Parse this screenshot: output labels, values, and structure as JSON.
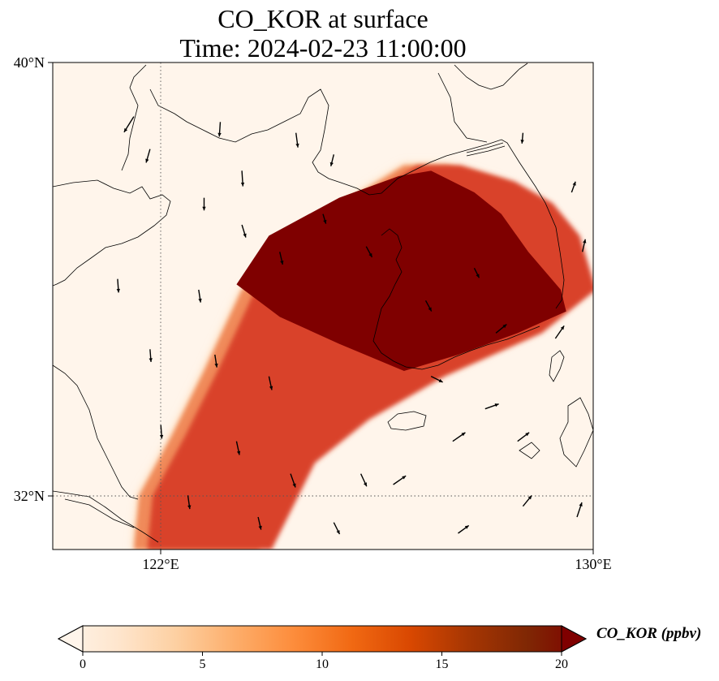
{
  "title": {
    "line1": "CO_KOR at surface",
    "line2": "Time: 2024-02-23 11:00:00"
  },
  "axes": {
    "lat_ticks": [
      "40°N",
      "32°N"
    ],
    "lon_ticks": [
      "122°E",
      "130°E"
    ]
  },
  "colorbar": {
    "label": "CO_KOR (ppbv)",
    "ticks": [
      "0",
      "5",
      "10",
      "15",
      "20"
    ],
    "min": 0,
    "max": 20,
    "extend": "both",
    "colormap": [
      "#fff5eb",
      "#fee6ce",
      "#fdd0a2",
      "#fdae6b",
      "#fd8d3c",
      "#f16913",
      "#d94801",
      "#a63603",
      "#7f2704"
    ]
  },
  "chart_data": {
    "type": "heatmap",
    "map_extent": {
      "lon": [
        120,
        130
      ],
      "lat": [
        31,
        40
      ]
    },
    "gridlines": {
      "lon": [
        122
      ],
      "lat": [
        32
      ],
      "style": "dotted"
    },
    "plume": {
      "description_value_max": 20,
      "core_polygon_lonlat": [
        [
          126.4,
          37.9
        ],
        [
          127.0,
          38.0
        ],
        [
          127.8,
          37.6
        ],
        [
          128.3,
          37.2
        ],
        [
          128.8,
          36.5
        ],
        [
          129.4,
          35.8
        ],
        [
          129.5,
          35.4
        ],
        [
          128.6,
          35.0
        ],
        [
          127.5,
          34.6
        ],
        [
          126.5,
          34.3
        ],
        [
          125.3,
          34.8
        ],
        [
          124.2,
          35.3
        ],
        [
          123.4,
          35.9
        ],
        [
          124.0,
          36.8
        ],
        [
          125.3,
          37.5
        ]
      ],
      "outer_polygon_lonlat": [
        [
          126.5,
          38.1
        ],
        [
          127.3,
          38.1
        ],
        [
          128.3,
          37.8
        ],
        [
          129.0,
          37.4
        ],
        [
          129.5,
          36.8
        ],
        [
          129.8,
          35.8
        ],
        [
          128.8,
          35.0
        ],
        [
          127.0,
          34.2
        ],
        [
          125.6,
          33.4
        ],
        [
          124.6,
          32.6
        ],
        [
          124.1,
          31.6
        ],
        [
          123.8,
          31.0
        ],
        [
          121.5,
          31.0
        ],
        [
          121.6,
          32.0
        ],
        [
          122.2,
          33.1
        ],
        [
          122.8,
          34.3
        ],
        [
          123.5,
          35.8
        ],
        [
          124.7,
          36.8
        ],
        [
          125.7,
          37.6
        ]
      ]
    },
    "wind_vectors": [
      {
        "lon": 121.5,
        "lat": 39.0,
        "u": -1,
        "v": -1.6
      },
      {
        "lon": 123.1,
        "lat": 38.9,
        "u": -0.1,
        "v": -1.5
      },
      {
        "lon": 124.5,
        "lat": 38.7,
        "u": 0.2,
        "v": -1.5
      },
      {
        "lon": 121.8,
        "lat": 38.4,
        "u": -0.4,
        "v": -1.4
      },
      {
        "lon": 123.5,
        "lat": 38.0,
        "u": 0.1,
        "v": -1.6
      },
      {
        "lon": 125.2,
        "lat": 38.3,
        "u": -0.3,
        "v": -1.2
      },
      {
        "lon": 122.8,
        "lat": 37.5,
        "u": 0.0,
        "v": -1.3
      },
      {
        "lon": 123.5,
        "lat": 37.0,
        "u": 0.4,
        "v": -1.3
      },
      {
        "lon": 124.2,
        "lat": 36.5,
        "u": 0.3,
        "v": -1.3
      },
      {
        "lon": 125.0,
        "lat": 37.2,
        "u": 0.3,
        "v": -1.0
      },
      {
        "lon": 121.2,
        "lat": 36.0,
        "u": 0.1,
        "v": -1.4
      },
      {
        "lon": 122.7,
        "lat": 35.8,
        "u": 0.2,
        "v": -1.3
      },
      {
        "lon": 121.8,
        "lat": 34.7,
        "u": 0.1,
        "v": -1.3
      },
      {
        "lon": 123.0,
        "lat": 34.6,
        "u": 0.2,
        "v": -1.3
      },
      {
        "lon": 124.0,
        "lat": 34.2,
        "u": 0.3,
        "v": -1.4
      },
      {
        "lon": 122.0,
        "lat": 33.3,
        "u": 0.1,
        "v": -1.4
      },
      {
        "lon": 123.4,
        "lat": 33.0,
        "u": 0.3,
        "v": -1.4
      },
      {
        "lon": 124.4,
        "lat": 32.4,
        "u": 0.5,
        "v": -1.4
      },
      {
        "lon": 125.7,
        "lat": 32.4,
        "u": 0.6,
        "v": -1.3
      },
      {
        "lon": 122.5,
        "lat": 32.0,
        "u": 0.2,
        "v": -1.4
      },
      {
        "lon": 123.8,
        "lat": 31.6,
        "u": 0.3,
        "v": -1.3
      },
      {
        "lon": 125.2,
        "lat": 31.5,
        "u": 0.6,
        "v": -1.2
      },
      {
        "lon": 127.0,
        "lat": 34.2,
        "u": 1.2,
        "v": -0.6
      },
      {
        "lon": 127.4,
        "lat": 33.0,
        "u": 1.3,
        "v": 0.9
      },
      {
        "lon": 128.0,
        "lat": 33.6,
        "u": 1.4,
        "v": 0.5
      },
      {
        "lon": 128.6,
        "lat": 33.0,
        "u": 1.2,
        "v": 0.9
      },
      {
        "lon": 126.3,
        "lat": 32.2,
        "u": 1.3,
        "v": 0.9
      },
      {
        "lon": 127.5,
        "lat": 31.3,
        "u": 1.1,
        "v": 0.8
      },
      {
        "lon": 128.7,
        "lat": 31.8,
        "u": 0.9,
        "v": 1.1
      },
      {
        "lon": 129.7,
        "lat": 31.6,
        "u": 0.5,
        "v": 1.5
      },
      {
        "lon": 128.2,
        "lat": 35.0,
        "u": 1.1,
        "v": 0.9
      },
      {
        "lon": 129.3,
        "lat": 34.9,
        "u": 0.9,
        "v": 1.3
      },
      {
        "lon": 129.6,
        "lat": 37.6,
        "u": 0.4,
        "v": 1.1
      },
      {
        "lon": 129.8,
        "lat": 36.5,
        "u": 0.3,
        "v": 1.3
      },
      {
        "lon": 128.7,
        "lat": 38.7,
        "u": -0.1,
        "v": -1.1
      },
      {
        "lon": 127.8,
        "lat": 36.2,
        "u": 0.5,
        "v": -1.0
      },
      {
        "lon": 126.9,
        "lat": 35.6,
        "u": 0.6,
        "v": -1.1
      },
      {
        "lon": 125.8,
        "lat": 36.6,
        "u": 0.6,
        "v": -1.1
      }
    ]
  }
}
